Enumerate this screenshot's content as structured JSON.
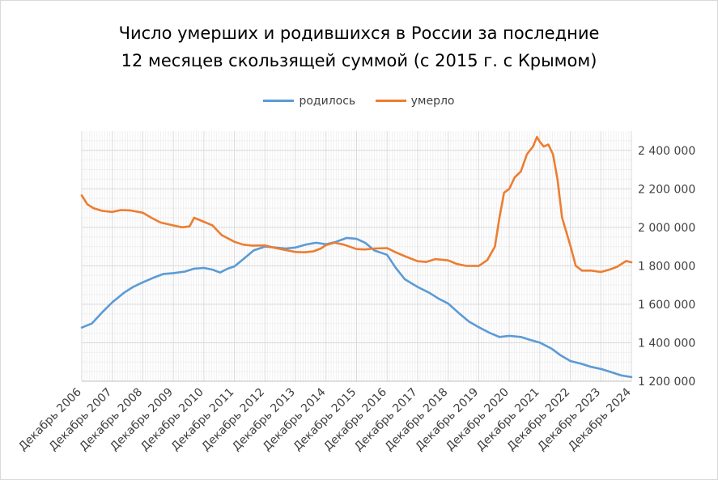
{
  "title": {
    "line1": "Число умерших и родившихся в России за последние",
    "line2": "12 месяцев скользящей суммой (с 2015 г. с Крымом)"
  },
  "chart_data": {
    "type": "line",
    "title": "Число умерших и родившихся в России за последние 12 месяцев скользящей суммой (с 2015 г. с Крымом)",
    "xlabel": "",
    "ylabel": "",
    "x_ticks": [
      "Декабрь 2006",
      "Декабрь 2007",
      "Декабрь 2008",
      "Декабрь 2009",
      "Декабрь 2010",
      "Декабрь 2011",
      "Декабрь 2012",
      "Декабрь 2013",
      "Декабрь 2014",
      "Декабрь 2015",
      "Декабрь 2016",
      "Декабрь 2017",
      "Декабрь 2018",
      "Декабрь 2019",
      "Декабрь 2020",
      "Декабрь 2021",
      "Декабрь 2022",
      "Декабрь 2023",
      "Декабрь 2024"
    ],
    "y_ticks": [
      "1 200 000",
      "1 400 000",
      "1 600 000",
      "1 800 000",
      "2 000 000",
      "2 200 000",
      "2 400 000"
    ],
    "ylim": [
      1200000,
      2500000
    ],
    "y_axis_side": "right",
    "grid": true,
    "legend_position": "top",
    "series": [
      {
        "name": "родилось",
        "color": "#5b9bd5",
        "points": [
          [
            2006.92,
            1479000
          ],
          [
            2007.25,
            1500000
          ],
          [
            2007.6,
            1560000
          ],
          [
            2007.92,
            1610000
          ],
          [
            2008.3,
            1660000
          ],
          [
            2008.6,
            1690000
          ],
          [
            2008.92,
            1714000
          ],
          [
            2009.3,
            1740000
          ],
          [
            2009.6,
            1758000
          ],
          [
            2009.92,
            1762000
          ],
          [
            2010.3,
            1770000
          ],
          [
            2010.6,
            1785000
          ],
          [
            2010.92,
            1789000
          ],
          [
            2011.2,
            1780000
          ],
          [
            2011.45,
            1765000
          ],
          [
            2011.7,
            1785000
          ],
          [
            2011.92,
            1797000
          ],
          [
            2012.25,
            1840000
          ],
          [
            2012.55,
            1880000
          ],
          [
            2012.92,
            1900000
          ],
          [
            2013.25,
            1895000
          ],
          [
            2013.6,
            1890000
          ],
          [
            2013.92,
            1895000
          ],
          [
            2014.25,
            1910000
          ],
          [
            2014.6,
            1920000
          ],
          [
            2014.92,
            1912000
          ],
          [
            2015.25,
            1925000
          ],
          [
            2015.6,
            1945000
          ],
          [
            2015.92,
            1940000
          ],
          [
            2016.2,
            1920000
          ],
          [
            2016.5,
            1880000
          ],
          [
            2016.92,
            1857000
          ],
          [
            2017.2,
            1790000
          ],
          [
            2017.5,
            1730000
          ],
          [
            2017.92,
            1690000
          ],
          [
            2018.3,
            1660000
          ],
          [
            2018.6,
            1630000
          ],
          [
            2018.92,
            1604000
          ],
          [
            2019.3,
            1550000
          ],
          [
            2019.6,
            1510000
          ],
          [
            2019.92,
            1481000
          ],
          [
            2020.3,
            1450000
          ],
          [
            2020.6,
            1430000
          ],
          [
            2020.92,
            1436000
          ],
          [
            2021.3,
            1430000
          ],
          [
            2021.6,
            1415000
          ],
          [
            2021.92,
            1401000
          ],
          [
            2022.3,
            1370000
          ],
          [
            2022.6,
            1335000
          ],
          [
            2022.92,
            1305000
          ],
          [
            2023.3,
            1290000
          ],
          [
            2023.6,
            1275000
          ],
          [
            2023.92,
            1264000
          ],
          [
            2024.3,
            1245000
          ],
          [
            2024.6,
            1230000
          ],
          [
            2024.92,
            1222000
          ]
        ]
      },
      {
        "name": "умерло",
        "color": "#ed7d31",
        "points": [
          [
            2006.92,
            2166000
          ],
          [
            2007.1,
            2120000
          ],
          [
            2007.3,
            2100000
          ],
          [
            2007.6,
            2085000
          ],
          [
            2007.92,
            2080000
          ],
          [
            2008.2,
            2090000
          ],
          [
            2008.5,
            2088000
          ],
          [
            2008.92,
            2076000
          ],
          [
            2009.2,
            2050000
          ],
          [
            2009.5,
            2025000
          ],
          [
            2009.92,
            2010000
          ],
          [
            2010.2,
            2000000
          ],
          [
            2010.45,
            2005000
          ],
          [
            2010.6,
            2050000
          ],
          [
            2010.92,
            2029000
          ],
          [
            2011.2,
            2010000
          ],
          [
            2011.5,
            1960000
          ],
          [
            2011.92,
            1925000
          ],
          [
            2012.2,
            1910000
          ],
          [
            2012.5,
            1905000
          ],
          [
            2012.92,
            1906000
          ],
          [
            2013.2,
            1895000
          ],
          [
            2013.5,
            1885000
          ],
          [
            2013.92,
            1872000
          ],
          [
            2014.2,
            1870000
          ],
          [
            2014.5,
            1875000
          ],
          [
            2014.75,
            1890000
          ],
          [
            2014.92,
            1908000
          ],
          [
            2015.2,
            1920000
          ],
          [
            2015.5,
            1910000
          ],
          [
            2015.92,
            1887000
          ],
          [
            2016.2,
            1885000
          ],
          [
            2016.5,
            1890000
          ],
          [
            2016.92,
            1892000
          ],
          [
            2017.2,
            1870000
          ],
          [
            2017.5,
            1850000
          ],
          [
            2017.92,
            1824000
          ],
          [
            2018.2,
            1820000
          ],
          [
            2018.5,
            1835000
          ],
          [
            2018.92,
            1828000
          ],
          [
            2019.2,
            1810000
          ],
          [
            2019.5,
            1800000
          ],
          [
            2019.92,
            1799000
          ],
          [
            2020.2,
            1830000
          ],
          [
            2020.45,
            1900000
          ],
          [
            2020.6,
            2050000
          ],
          [
            2020.75,
            2180000
          ],
          [
            2020.92,
            2200000
          ],
          [
            2021.1,
            2260000
          ],
          [
            2021.3,
            2290000
          ],
          [
            2021.5,
            2380000
          ],
          [
            2021.7,
            2420000
          ],
          [
            2021.83,
            2470000
          ],
          [
            2021.92,
            2445000
          ],
          [
            2022.05,
            2420000
          ],
          [
            2022.2,
            2430000
          ],
          [
            2022.35,
            2380000
          ],
          [
            2022.5,
            2250000
          ],
          [
            2022.65,
            2050000
          ],
          [
            2022.92,
            1905000
          ],
          [
            2023.1,
            1800000
          ],
          [
            2023.3,
            1775000
          ],
          [
            2023.6,
            1775000
          ],
          [
            2023.92,
            1768000
          ],
          [
            2024.2,
            1780000
          ],
          [
            2024.45,
            1795000
          ],
          [
            2024.6,
            1810000
          ],
          [
            2024.75,
            1825000
          ],
          [
            2024.92,
            1818000
          ]
        ]
      }
    ]
  }
}
